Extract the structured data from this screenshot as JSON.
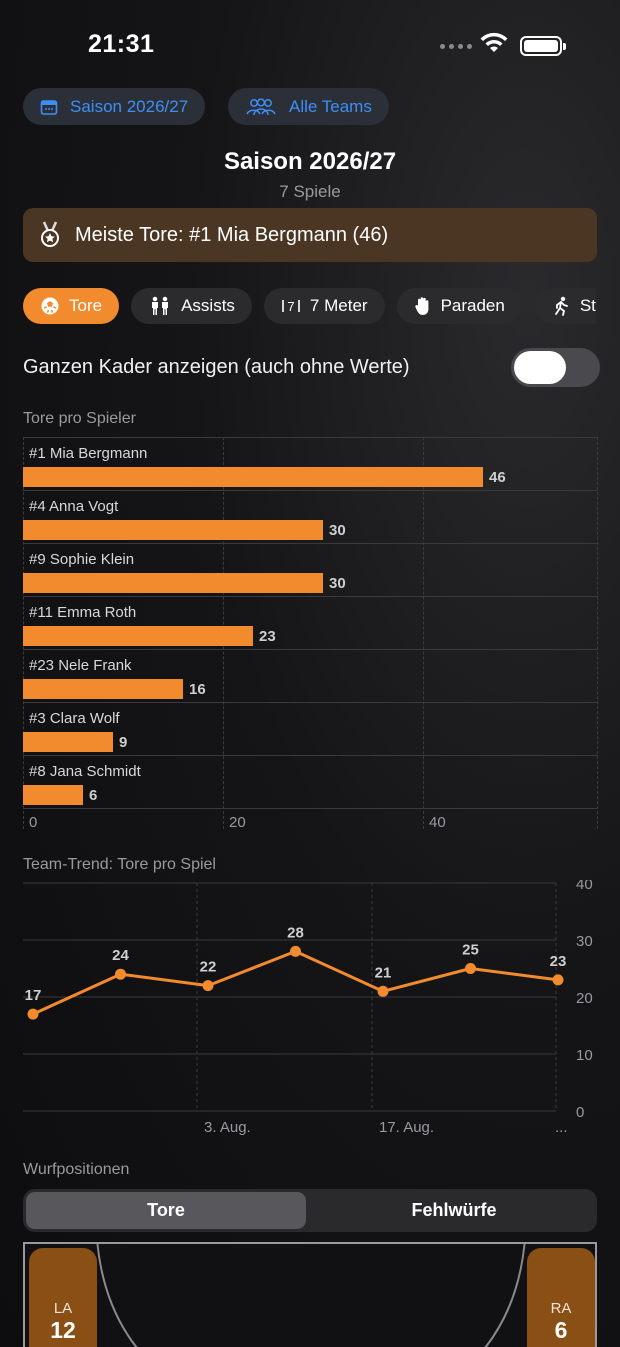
{
  "status": {
    "time": "21:31"
  },
  "top_buttons": {
    "season": "Saison 2026/27",
    "teams": "Alle Teams"
  },
  "header": {
    "title": "Saison 2026/27",
    "subtitle": "7 Spiele"
  },
  "banner": {
    "text": "Meiste Tore: #1 Mia Bergmann (46)",
    "color": "#4a3622"
  },
  "chips": [
    {
      "label": "Tore",
      "icon": "handball-icon",
      "active": true
    },
    {
      "label": "Assists",
      "icon": "people-icon",
      "active": false
    },
    {
      "label": "7 Meter",
      "icon": "seven-meter-icon",
      "active": false
    },
    {
      "label": "Paraden",
      "icon": "hand-icon",
      "active": false
    },
    {
      "label": "St",
      "icon": "running-icon",
      "active": false
    }
  ],
  "toggle": {
    "label": "Ganzen Kader anzeigen (auch ohne Werte)",
    "on": false
  },
  "accent": "#f28a2e",
  "chart_data": [
    {
      "type": "bar",
      "orientation": "horizontal",
      "title": "Tore pro Spieler",
      "categories": [
        "#1 Mia Bergmann",
        "#4 Anna Vogt",
        "#9 Sophie Klein",
        "#11 Emma Roth",
        "#23 Nele Frank",
        "#3 Clara Wolf",
        "#8 Jana Schmidt"
      ],
      "values": [
        46,
        30,
        30,
        23,
        16,
        9,
        6
      ],
      "xlim": [
        0,
        57.5
      ],
      "ticks": [
        "0",
        "20",
        "40"
      ],
      "grid": true
    },
    {
      "type": "line",
      "title": "Team-Trend: Tore pro Spiel",
      "values": [
        17,
        24,
        22,
        28,
        21,
        25,
        23
      ],
      "value_labels": [
        "17",
        "24",
        "22",
        "28",
        "21",
        "25",
        "23"
      ],
      "x_tick_labels": [
        "3. Aug.",
        "17. Aug.",
        "..."
      ],
      "ylim": [
        0,
        40
      ],
      "y_ticks": [
        "40",
        "30",
        "20",
        "10",
        "0"
      ],
      "grid": true
    }
  ],
  "positions": {
    "label": "Wurfpositionen",
    "tabs": [
      "Tore",
      "Fehlwürfe"
    ],
    "zones": [
      {
        "label": "LA",
        "value": "12"
      },
      {
        "label": "RA",
        "value": "6"
      }
    ]
  }
}
